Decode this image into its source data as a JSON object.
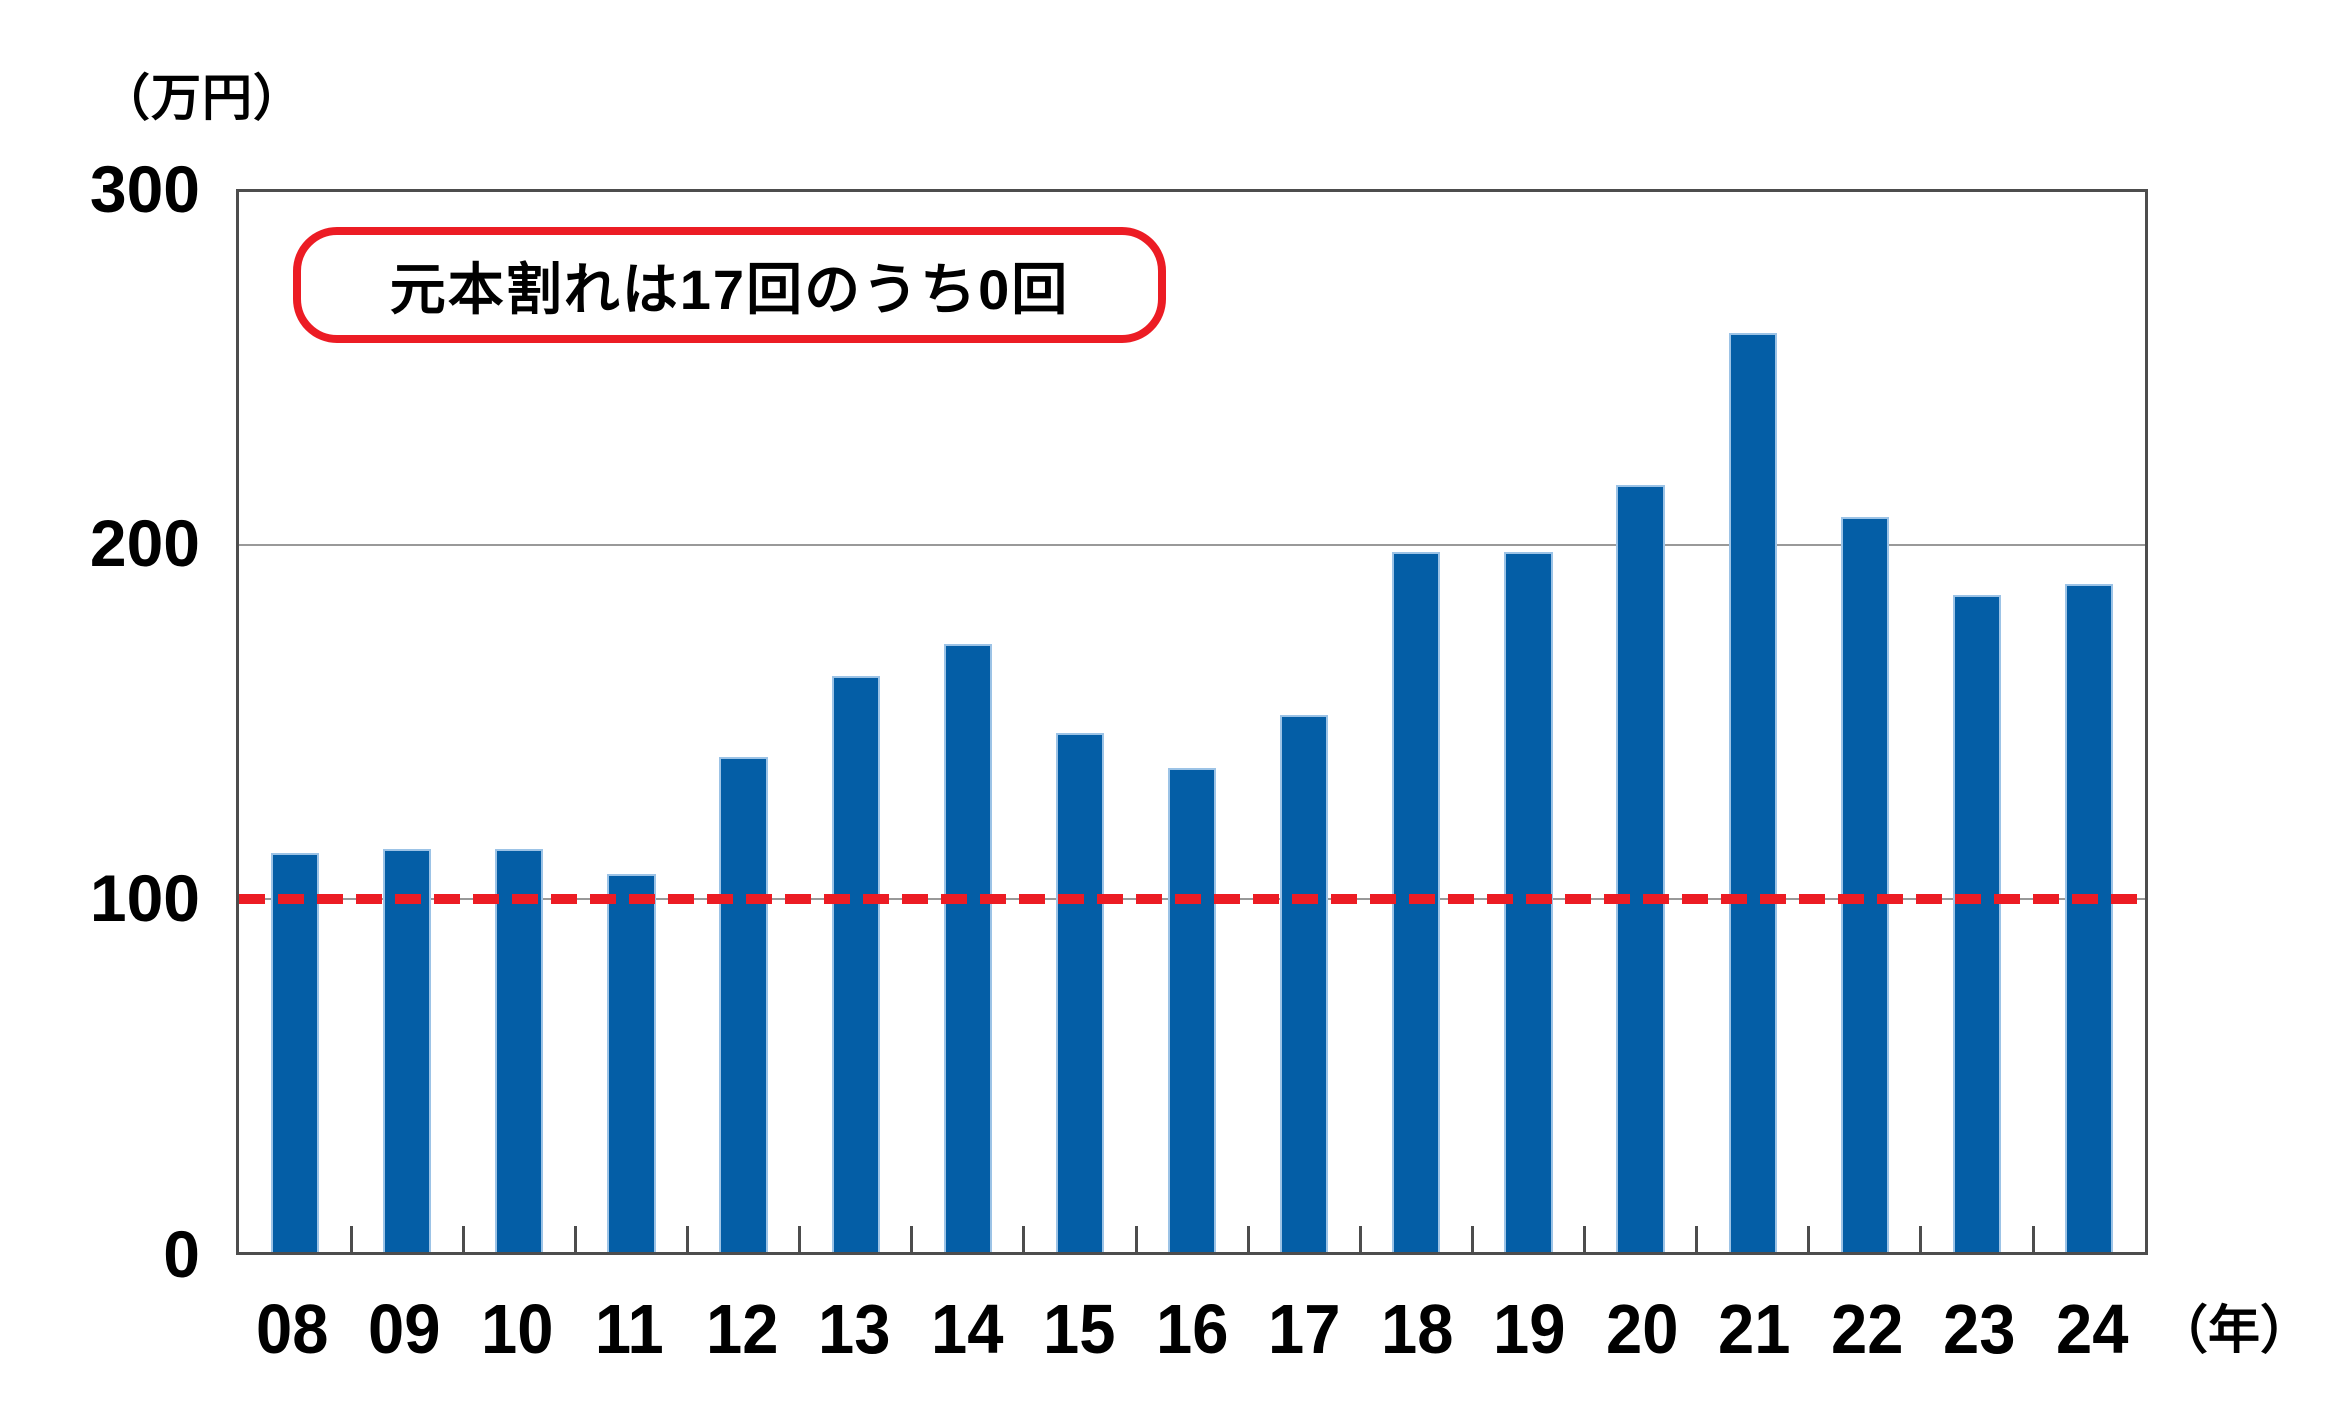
{
  "chart_data": {
    "type": "bar",
    "title": "",
    "unit_label": "（万円）",
    "x_unit_label": "（年）",
    "annotation": "元本割れは17回のうち0回",
    "categories": [
      "08",
      "09",
      "10",
      "11",
      "12",
      "13",
      "14",
      "15",
      "16",
      "17",
      "18",
      "19",
      "20",
      "21",
      "22",
      "23",
      "24"
    ],
    "values": [
      113,
      114,
      114,
      107,
      140,
      163,
      172,
      147,
      137,
      152,
      198,
      198,
      217,
      260,
      208,
      186,
      189
    ],
    "yticks": [
      "300",
      "200",
      "100",
      "0"
    ],
    "ylim": [
      0,
      300
    ],
    "baseline_value": 100,
    "grid": "horizontal",
    "legend": "none"
  },
  "colors": {
    "bar_fill": "#045EA6",
    "bar_outline": "#9CC3E6",
    "accent_red": "#EC1C24",
    "gridline": "#999999",
    "axis_border": "#4D4D4D",
    "text": "#000000",
    "background": "#FFFFFF"
  }
}
